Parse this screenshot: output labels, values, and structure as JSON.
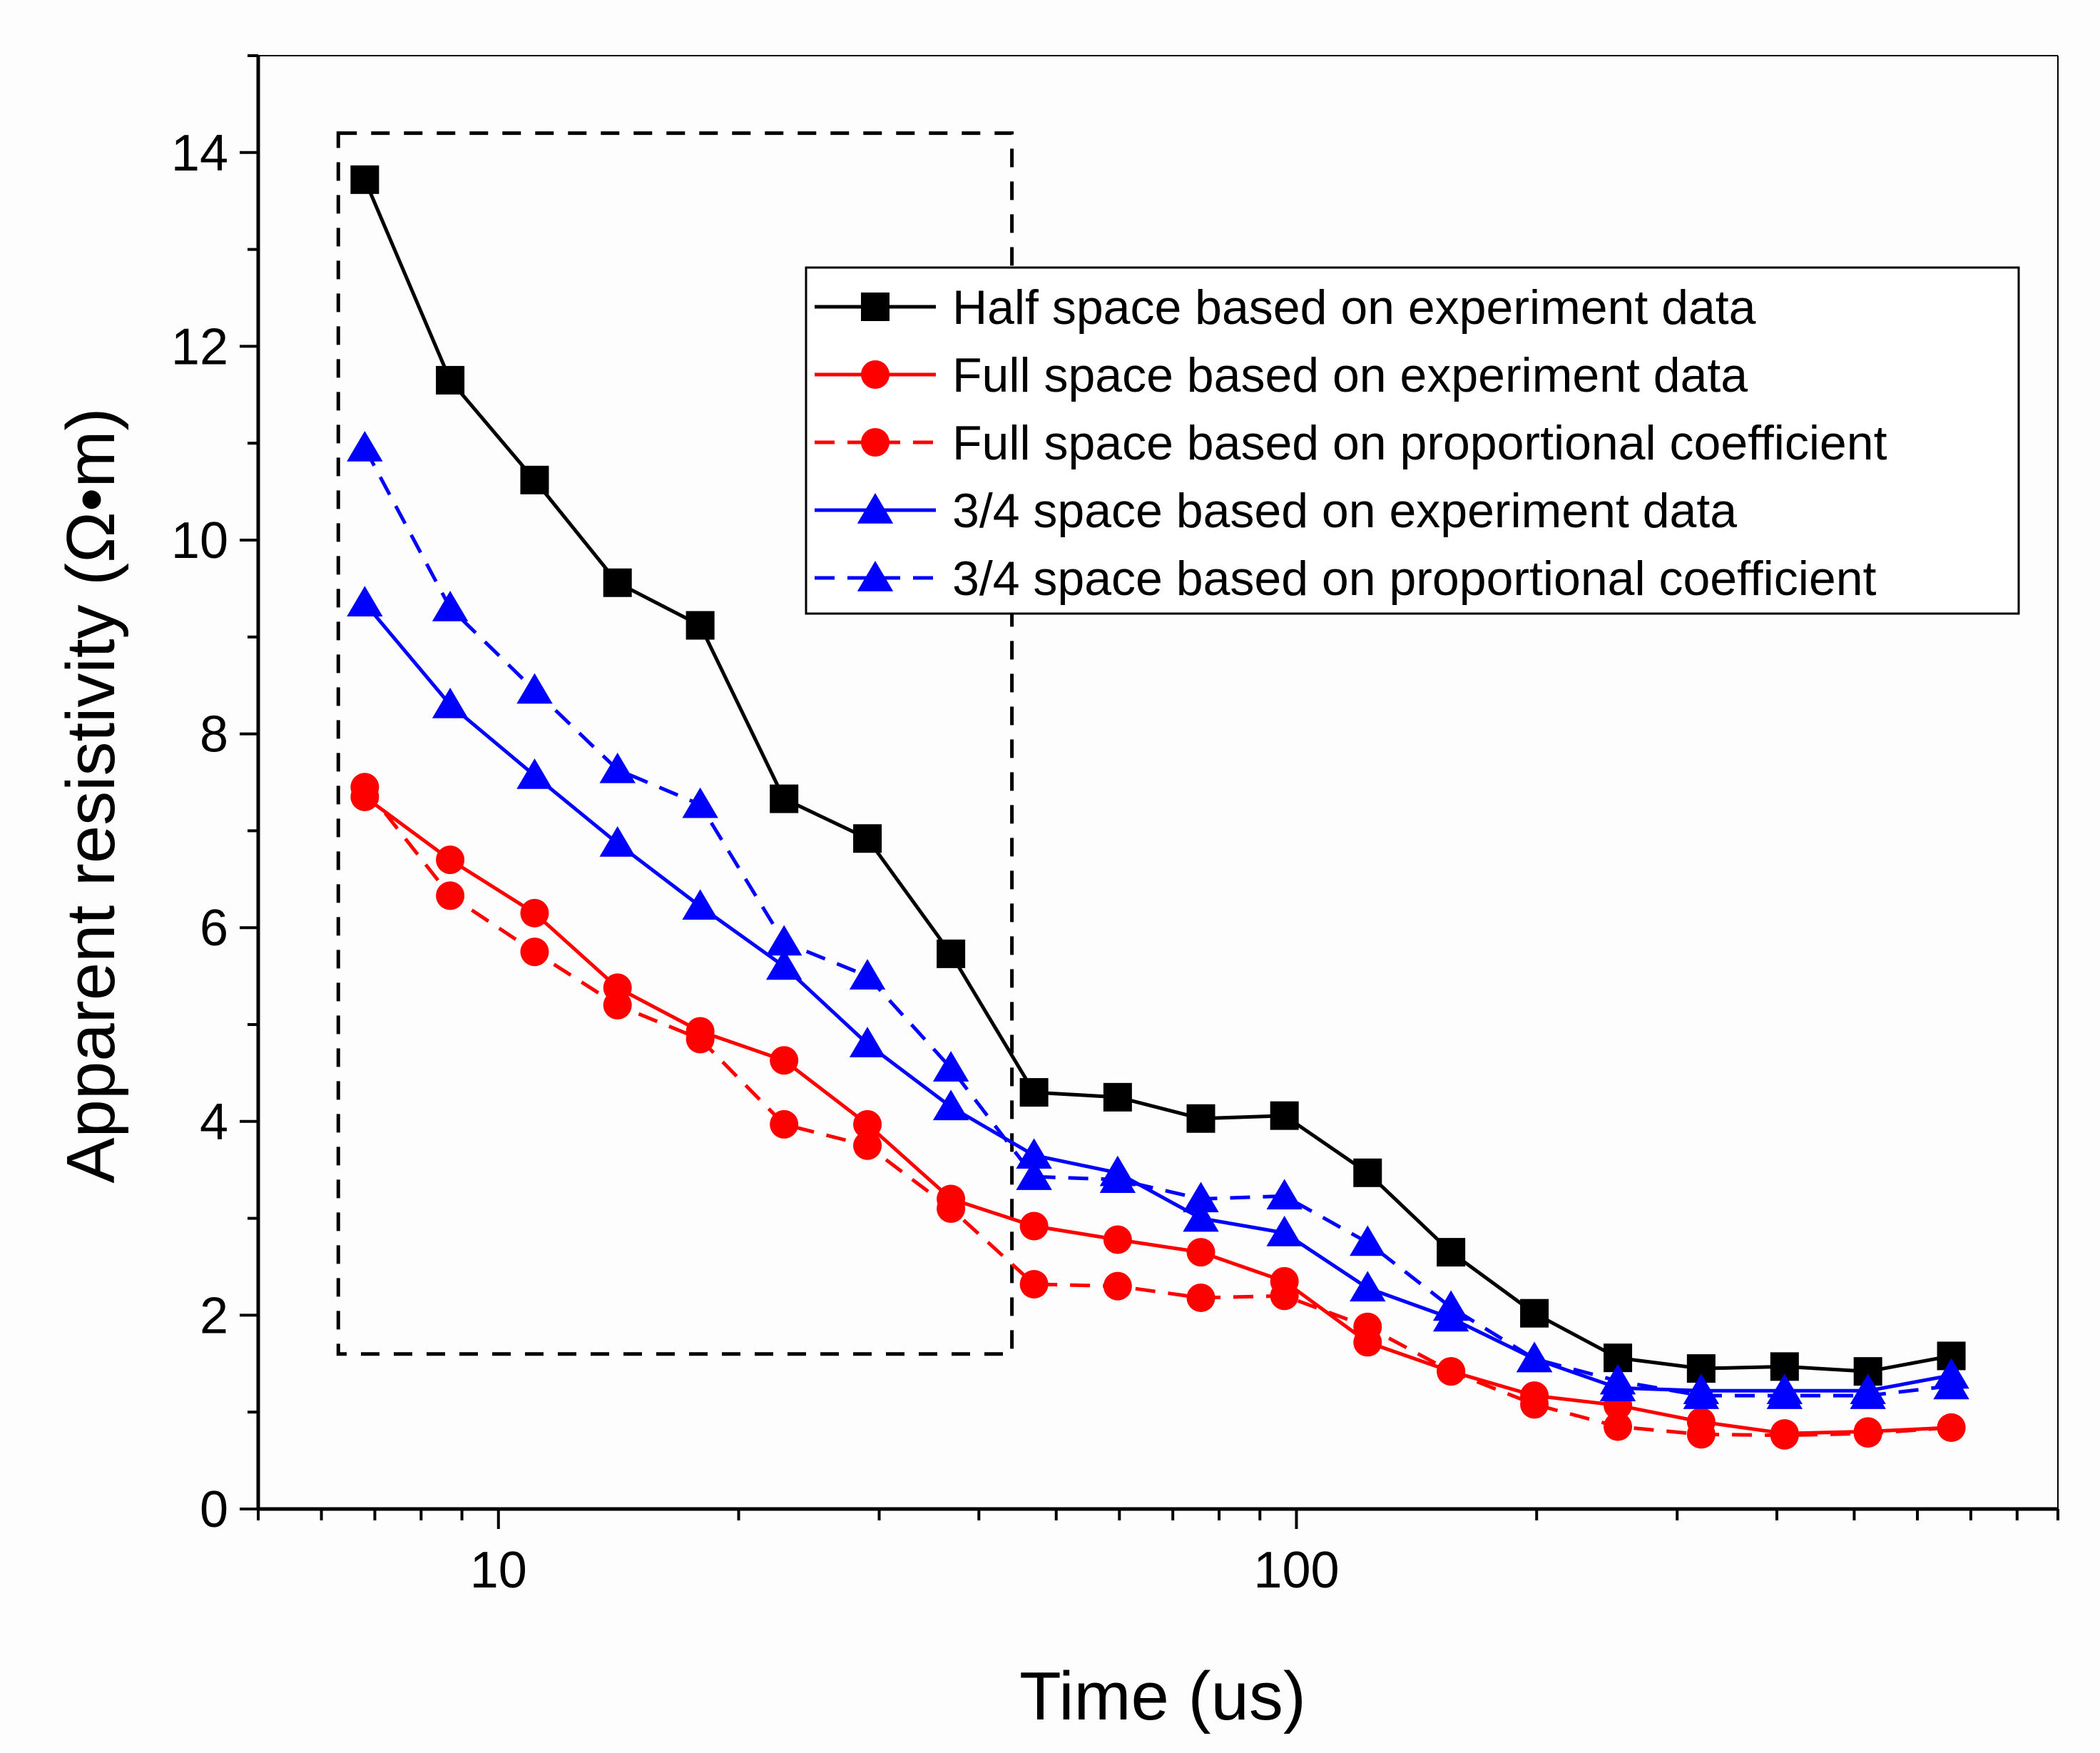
{
  "chart_data": {
    "type": "line",
    "xscale": "log",
    "xlabel": "Time (us)",
    "ylabel": "Apparent resistivity (Ω•m)",
    "xlim": [
      5,
      900
    ],
    "ylim": [
      0,
      15
    ],
    "xticks": [
      10,
      100
    ],
    "xtick_labels": [
      "10",
      "100"
    ],
    "yticks": [
      0,
      2,
      4,
      6,
      8,
      10,
      12,
      14
    ],
    "ytick_labels": [
      "0",
      "2",
      "4",
      "6",
      "8",
      "10",
      "12",
      "14"
    ],
    "legend_position": "top-right",
    "highlight_box": {
      "x_range": [
        6.3,
        44
      ],
      "y_range": [
        1.6,
        14.2
      ],
      "style": "dashed"
    },
    "x": [
      6.8,
      8.7,
      11.1,
      14.1,
      17.9,
      22.8,
      29.0,
      36.9,
      46.9,
      59.7,
      75.9,
      96.6,
      122.8,
      156.2,
      198.7,
      252.8,
      321.5,
      409.0,
      520.2,
      661.7
    ],
    "series": [
      {
        "name": "Half space based on experiment data",
        "color": "#000000",
        "dash": "solid",
        "marker": "square",
        "values": [
          13.72,
          11.65,
          10.62,
          9.56,
          9.12,
          7.33,
          6.92,
          5.73,
          4.3,
          4.25,
          4.03,
          4.06,
          3.47,
          2.65,
          2.02,
          1.56,
          1.45,
          1.47,
          1.42,
          1.58
        ]
      },
      {
        "name": "Full space based on experiment data",
        "color": "#ff0000",
        "dash": "solid",
        "marker": "circle",
        "values": [
          7.35,
          6.7,
          6.15,
          5.38,
          4.93,
          4.63,
          3.97,
          3.2,
          2.92,
          2.78,
          2.65,
          2.35,
          1.72,
          1.42,
          1.17,
          1.07,
          0.9,
          0.78,
          0.8,
          0.84
        ]
      },
      {
        "name": "Full space based on proportional coefficient",
        "color": "#ff0000",
        "dash": "dashed",
        "marker": "circle",
        "values": [
          7.45,
          6.33,
          5.75,
          5.2,
          4.85,
          3.97,
          3.75,
          3.1,
          2.32,
          2.3,
          2.18,
          2.2,
          1.88,
          1.42,
          1.08,
          0.85,
          0.77,
          0.76,
          0.78,
          0.84
        ]
      },
      {
        "name": "3/4 space based on experiment data",
        "color": "#0000ff",
        "dash": "solid",
        "marker": "triangle",
        "values": [
          9.35,
          8.3,
          7.57,
          6.87,
          6.22,
          5.6,
          4.8,
          4.15,
          3.65,
          3.47,
          3.0,
          2.85,
          2.28,
          1.97,
          1.55,
          1.25,
          1.22,
          1.22,
          1.22,
          1.38
        ]
      },
      {
        "name": "3/4 space based on  proportional coefficient",
        "color": "#0000ff",
        "dash": "dashed",
        "marker": "triangle",
        "values": [
          10.95,
          9.3,
          8.45,
          7.63,
          7.27,
          5.85,
          5.5,
          4.55,
          3.43,
          3.4,
          3.2,
          3.23,
          2.75,
          2.08,
          1.55,
          1.32,
          1.17,
          1.17,
          1.17,
          1.27
        ]
      }
    ]
  }
}
